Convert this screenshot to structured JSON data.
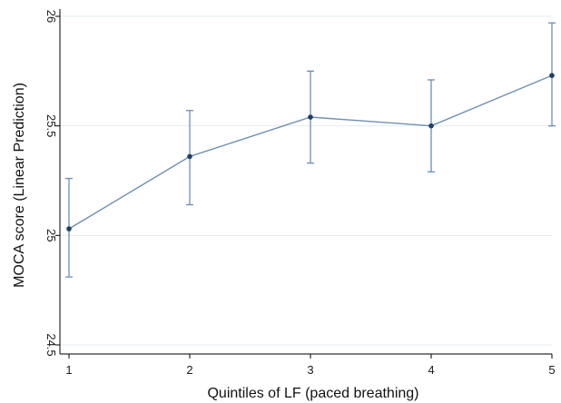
{
  "chart_data": {
    "type": "line",
    "title": "",
    "xlabel": "Quintiles of LF (paced breathing)",
    "ylabel": "MOCA score (Linear Prediction)",
    "x": [
      1,
      2,
      3,
      4,
      5
    ],
    "x_ticks": [
      "1",
      "2",
      "3",
      "4",
      "5"
    ],
    "y_ticks": [
      "24.5",
      "25",
      "25.5",
      "26"
    ],
    "xlim": [
      1,
      5
    ],
    "ylim": [
      24.5,
      26
    ],
    "grid": true,
    "series": [
      {
        "values": [
          25.03,
          25.36,
          25.54,
          25.5,
          25.73
        ],
        "ci_lower": [
          24.81,
          25.14,
          25.33,
          25.29,
          25.5
        ],
        "ci_upper": [
          25.26,
          25.57,
          25.75,
          25.71,
          25.97
        ],
        "color": "#6d8fb3",
        "marker_color": "#1f3f66"
      }
    ],
    "gridline_color": "#e3ecf1",
    "axis_color": "#000000"
  }
}
